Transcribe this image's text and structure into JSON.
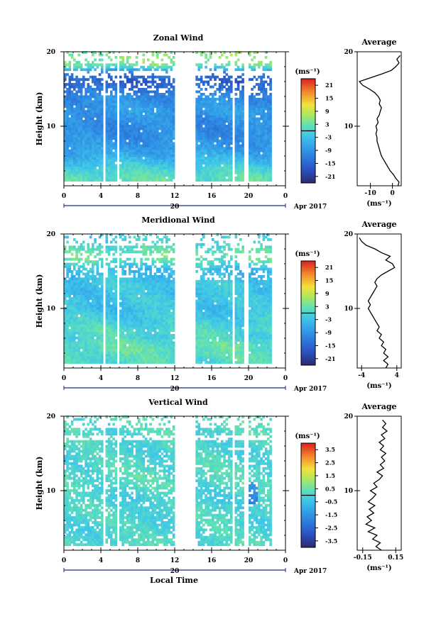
{
  "figure": {
    "x_axis_title": "Local Time",
    "date_label": "Apr 2017",
    "date_tick": "20"
  },
  "chart_data": [
    {
      "type": "heatmap",
      "title": "Zonal Wind",
      "ylabel": "Height (km)",
      "xlabel": "Local Time",
      "x_ticks": [
        "0",
        "4",
        "8",
        "12",
        "16",
        "20",
        "0"
      ],
      "x_range_hours": [
        0,
        24
      ],
      "y_ticks": [
        "20",
        "10"
      ],
      "ylim_km": [
        2,
        20
      ],
      "colorbar": {
        "unit": "(ms⁻¹)",
        "ticks": [
          "21",
          "15",
          "9",
          "3",
          "-3",
          "-9",
          "-15",
          "-21"
        ],
        "range": [
          -24,
          24
        ]
      },
      "data_gaps_hours": [
        [
          4.2,
          4.6
        ],
        [
          5.7,
          6.0
        ],
        [
          12.0,
          14.2
        ],
        [
          18.3,
          18.6
        ],
        [
          19.4,
          19.9
        ],
        [
          22.5,
          24.0
        ]
      ],
      "band_profile": [
        {
          "height_km": 3,
          "value": 2
        },
        {
          "height_km": 4,
          "value": 0
        },
        {
          "height_km": 5,
          "value": -3
        },
        {
          "height_km": 6,
          "value": -6
        },
        {
          "height_km": 7,
          "value": -8
        },
        {
          "height_km": 8,
          "value": -9
        },
        {
          "height_km": 9,
          "value": -10
        },
        {
          "height_km": 10,
          "value": -10
        },
        {
          "height_km": 11,
          "value": -9
        },
        {
          "height_km": 12,
          "value": -8
        },
        {
          "height_km": 13,
          "value": -9
        },
        {
          "height_km": 14,
          "value": -10
        },
        {
          "height_km": 15,
          "value": -14
        },
        {
          "height_km": 16,
          "value": -16
        },
        {
          "height_km": 17,
          "value": -12
        },
        {
          "height_km": 18,
          "value": 3
        },
        {
          "height_km": 19,
          "value": 5
        }
      ],
      "average": {
        "title": "Average",
        "xlabel": "(ms⁻¹)",
        "x_ticks": [
          "-10",
          "0"
        ],
        "xlim": [
          -16,
          4
        ],
        "y_ticks": [
          "20",
          "10"
        ],
        "ylim_km": [
          2,
          20
        ],
        "profile": [
          {
            "h": 2.0,
            "v": 2.5
          },
          {
            "h": 2.5,
            "v": 3.0
          },
          {
            "h": 3.0,
            "v": 1.5
          },
          {
            "h": 3.5,
            "v": 0.5
          },
          {
            "h": 4.0,
            "v": -1.0
          },
          {
            "h": 4.5,
            "v": -2.0
          },
          {
            "h": 5.0,
            "v": -3.0
          },
          {
            "h": 5.5,
            "v": -4.0
          },
          {
            "h": 6.0,
            "v": -5.0
          },
          {
            "h": 6.5,
            "v": -5.5
          },
          {
            "h": 7.0,
            "v": -6.0
          },
          {
            "h": 7.5,
            "v": -6.5
          },
          {
            "h": 8.0,
            "v": -7.0
          },
          {
            "h": 8.5,
            "v": -7.0
          },
          {
            "h": 9.0,
            "v": -7.5
          },
          {
            "h": 9.5,
            "v": -7.0
          },
          {
            "h": 10.0,
            "v": -7.5
          },
          {
            "h": 10.5,
            "v": -6.5
          },
          {
            "h": 11.0,
            "v": -7.0
          },
          {
            "h": 11.5,
            "v": -6.0
          },
          {
            "h": 12.0,
            "v": -5.5
          },
          {
            "h": 12.5,
            "v": -5.0
          },
          {
            "h": 13.0,
            "v": -6.0
          },
          {
            "h": 13.5,
            "v": -5.5
          },
          {
            "h": 14.0,
            "v": -6.5
          },
          {
            "h": 14.5,
            "v": -8.0
          },
          {
            "h": 15.0,
            "v": -10.5
          },
          {
            "h": 15.5,
            "v": -13.5
          },
          {
            "h": 16.0,
            "v": -15.0
          },
          {
            "h": 16.5,
            "v": -10.0
          },
          {
            "h": 17.0,
            "v": -5.0
          },
          {
            "h": 17.5,
            "v": -0.5
          },
          {
            "h": 18.0,
            "v": 1.5
          },
          {
            "h": 18.5,
            "v": 3.0
          },
          {
            "h": 19.0,
            "v": 2.0
          },
          {
            "h": 19.5,
            "v": 3.5
          }
        ]
      }
    },
    {
      "type": "heatmap",
      "title": "Meridional Wind",
      "ylabel": "Height (km)",
      "xlabel": "Local Time",
      "x_ticks": [
        "0",
        "4",
        "8",
        "12",
        "16",
        "20",
        "0"
      ],
      "x_range_hours": [
        0,
        24
      ],
      "y_ticks": [
        "20",
        "10"
      ],
      "ylim_km": [
        2,
        20
      ],
      "colorbar": {
        "unit": "(ms⁻¹)",
        "ticks": [
          "21",
          "15",
          "9",
          "3",
          "-3",
          "-9",
          "-15",
          "-21"
        ],
        "range": [
          -24,
          24
        ]
      },
      "data_gaps_hours": [
        [
          4.2,
          4.6
        ],
        [
          5.7,
          6.0
        ],
        [
          12.0,
          14.2
        ],
        [
          18.3,
          18.6
        ],
        [
          19.4,
          19.9
        ],
        [
          22.5,
          24.0
        ]
      ],
      "band_profile": [
        {
          "height_km": 3,
          "value": 1
        },
        {
          "height_km": 4,
          "value": 2
        },
        {
          "height_km": 5,
          "value": 2
        },
        {
          "height_km": 6,
          "value": 0
        },
        {
          "height_km": 7,
          "value": 1
        },
        {
          "height_km": 8,
          "value": -1
        },
        {
          "height_km": 9,
          "value": -2
        },
        {
          "height_km": 10,
          "value": -3
        },
        {
          "height_km": 11,
          "value": -2
        },
        {
          "height_km": 12,
          "value": -3
        },
        {
          "height_km": 13,
          "value": -2
        },
        {
          "height_km": 14,
          "value": -3
        },
        {
          "height_km": 15,
          "value": -4
        },
        {
          "height_km": 16,
          "value": 1
        },
        {
          "height_km": 17,
          "value": 4
        },
        {
          "height_km": 18,
          "value": 1
        },
        {
          "height_km": 19,
          "value": -1
        }
      ],
      "average": {
        "title": "Average",
        "xlabel": "(ms⁻¹)",
        "x_ticks": [
          "-4",
          "4"
        ],
        "xlim": [
          -5,
          5
        ],
        "y_ticks": [
          "20",
          "10"
        ],
        "ylim_km": [
          2,
          20
        ],
        "profile": [
          {
            "h": 2.0,
            "v": 1.5
          },
          {
            "h": 2.5,
            "v": 2.0
          },
          {
            "h": 3.0,
            "v": 1.0
          },
          {
            "h": 3.5,
            "v": 2.0
          },
          {
            "h": 4.0,
            "v": 1.0
          },
          {
            "h": 4.5,
            "v": 1.5
          },
          {
            "h": 5.0,
            "v": 0.5
          },
          {
            "h": 5.5,
            "v": 1.0
          },
          {
            "h": 6.0,
            "v": 0.0
          },
          {
            "h": 6.5,
            "v": 0.5
          },
          {
            "h": 7.0,
            "v": -0.5
          },
          {
            "h": 7.5,
            "v": 0.0
          },
          {
            "h": 8.0,
            "v": -0.5
          },
          {
            "h": 8.5,
            "v": -1.0
          },
          {
            "h": 9.0,
            "v": -1.5
          },
          {
            "h": 9.5,
            "v": -2.0
          },
          {
            "h": 10.0,
            "v": -2.5
          },
          {
            "h": 10.5,
            "v": -2.0
          },
          {
            "h": 11.0,
            "v": -2.5
          },
          {
            "h": 11.5,
            "v": -2.0
          },
          {
            "h": 12.0,
            "v": -1.5
          },
          {
            "h": 12.5,
            "v": -1.0
          },
          {
            "h": 13.0,
            "v": -0.5
          },
          {
            "h": 13.5,
            "v": -1.0
          },
          {
            "h": 14.0,
            "v": -0.5
          },
          {
            "h": 14.5,
            "v": 0.5
          },
          {
            "h": 15.0,
            "v": 2.0
          },
          {
            "h": 15.5,
            "v": 3.5
          },
          {
            "h": 16.0,
            "v": 3.0
          },
          {
            "h": 16.5,
            "v": 1.5
          },
          {
            "h": 17.0,
            "v": 2.5
          },
          {
            "h": 17.5,
            "v": 0.5
          },
          {
            "h": 18.0,
            "v": -1.0
          },
          {
            "h": 18.5,
            "v": -3.0
          },
          {
            "h": 19.0,
            "v": -4.0
          },
          {
            "h": 19.5,
            "v": -4.5
          }
        ]
      }
    },
    {
      "type": "heatmap",
      "title": "Vertical Wind",
      "ylabel": "Height (km)",
      "xlabel": "Local Time",
      "x_ticks": [
        "0",
        "4",
        "8",
        "12",
        "16",
        "20",
        "0"
      ],
      "x_range_hours": [
        0,
        24
      ],
      "y_ticks": [
        "20",
        "10"
      ],
      "ylim_km": [
        2,
        20
      ],
      "colorbar": {
        "unit": "(ms⁻¹)",
        "ticks": [
          "3.5",
          "2.5",
          "1.5",
          "0.5",
          "-0.5",
          "-1.5",
          "-2.5",
          "-3.5"
        ],
        "range": [
          -4,
          4
        ]
      },
      "data_gaps_hours": [
        [
          4.2,
          4.6
        ],
        [
          5.7,
          6.0
        ],
        [
          12.0,
          14.2
        ],
        [
          18.3,
          18.6
        ],
        [
          19.4,
          19.9
        ],
        [
          22.5,
          24.0
        ]
      ],
      "band_profile": [
        {
          "height_km": 3,
          "value": 0.1
        },
        {
          "height_km": 5,
          "value": 0.0
        },
        {
          "height_km": 7,
          "value": 0.1
        },
        {
          "height_km": 9,
          "value": -0.1
        },
        {
          "height_km": 11,
          "value": 0.2
        },
        {
          "height_km": 13,
          "value": 0.1
        },
        {
          "height_km": 15,
          "value": 0.0
        },
        {
          "height_km": 17,
          "value": 0.1
        },
        {
          "height_km": 19,
          "value": 0.2
        }
      ],
      "average": {
        "title": "Average",
        "xlabel": "(ms⁻¹)",
        "x_ticks": [
          "-0.15",
          "0.15"
        ],
        "xlim": [
          -0.2,
          0.2
        ],
        "y_ticks": [
          "20",
          "10"
        ],
        "ylim_km": [
          2,
          20
        ],
        "profile": [
          {
            "h": 2.0,
            "v": 0.02
          },
          {
            "h": 2.5,
            "v": -0.03
          },
          {
            "h": 3.0,
            "v": 0.01
          },
          {
            "h": 3.5,
            "v": -0.06
          },
          {
            "h": 4.0,
            "v": -0.02
          },
          {
            "h": 4.5,
            "v": -0.1
          },
          {
            "h": 5.0,
            "v": -0.04
          },
          {
            "h": 5.5,
            "v": -0.12
          },
          {
            "h": 6.0,
            "v": -0.07
          },
          {
            "h": 6.5,
            "v": -0.11
          },
          {
            "h": 7.0,
            "v": -0.05
          },
          {
            "h": 7.5,
            "v": -0.09
          },
          {
            "h": 8.0,
            "v": -0.04
          },
          {
            "h": 8.5,
            "v": -0.1
          },
          {
            "h": 9.0,
            "v": -0.06
          },
          {
            "h": 9.5,
            "v": -0.03
          },
          {
            "h": 10.0,
            "v": -0.08
          },
          {
            "h": 10.5,
            "v": -0.02
          },
          {
            "h": 11.0,
            "v": -0.05
          },
          {
            "h": 11.5,
            "v": 0.0
          },
          {
            "h": 12.0,
            "v": 0.03
          },
          {
            "h": 12.5,
            "v": -0.02
          },
          {
            "h": 13.0,
            "v": 0.04
          },
          {
            "h": 13.5,
            "v": 0.01
          },
          {
            "h": 14.0,
            "v": 0.05
          },
          {
            "h": 14.5,
            "v": 0.02
          },
          {
            "h": 15.0,
            "v": 0.06
          },
          {
            "h": 15.5,
            "v": 0.01
          },
          {
            "h": 16.0,
            "v": 0.04
          },
          {
            "h": 16.5,
            "v": 0.0
          },
          {
            "h": 17.0,
            "v": 0.05
          },
          {
            "h": 17.5,
            "v": 0.02
          },
          {
            "h": 18.0,
            "v": 0.07
          },
          {
            "h": 18.5,
            "v": 0.03
          },
          {
            "h": 19.0,
            "v": 0.06
          },
          {
            "h": 19.5,
            "v": 0.03
          }
        ]
      }
    }
  ]
}
